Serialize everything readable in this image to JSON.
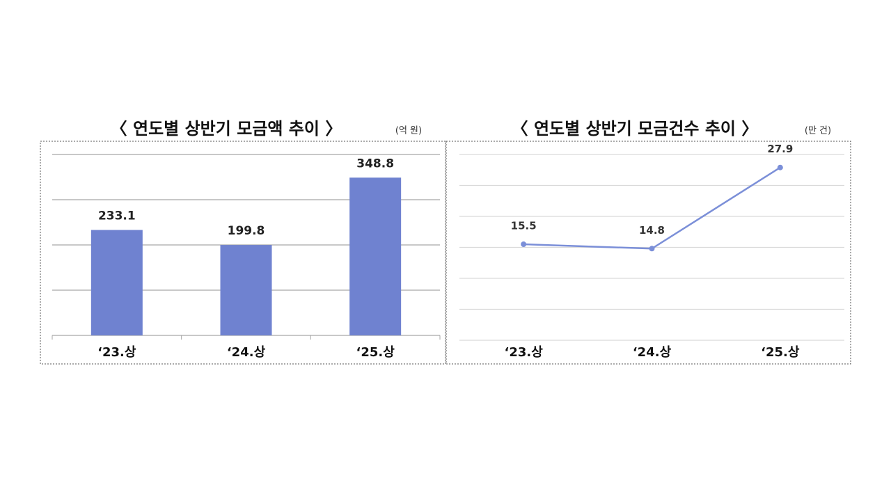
{
  "chart_data": [
    {
      "type": "bar",
      "title": "〈 연도별 상반기 모금액 추이 〉",
      "subtitle": "(억 원)",
      "categories": [
        "‘23.상",
        "‘24.상",
        "‘25.상"
      ],
      "values": [
        233.1,
        199.8,
        348.8
      ],
      "color": "#6f82d0",
      "ylim": [
        0,
        400
      ],
      "yticks": [
        0,
        100,
        200,
        300,
        400
      ],
      "grid": true
    },
    {
      "type": "line",
      "title": "〈 연도별 상반기 모금건수 추이 〉",
      "subtitle": "(만 건)",
      "categories": [
        "‘23.상",
        "‘24.상",
        "‘25.상"
      ],
      "values": [
        15.5,
        14.8,
        27.9
      ],
      "color": "#7b8fd8",
      "ylim": [
        0,
        30
      ],
      "yticks": [
        0,
        5,
        10,
        15,
        20,
        25,
        30
      ],
      "grid": true
    }
  ]
}
